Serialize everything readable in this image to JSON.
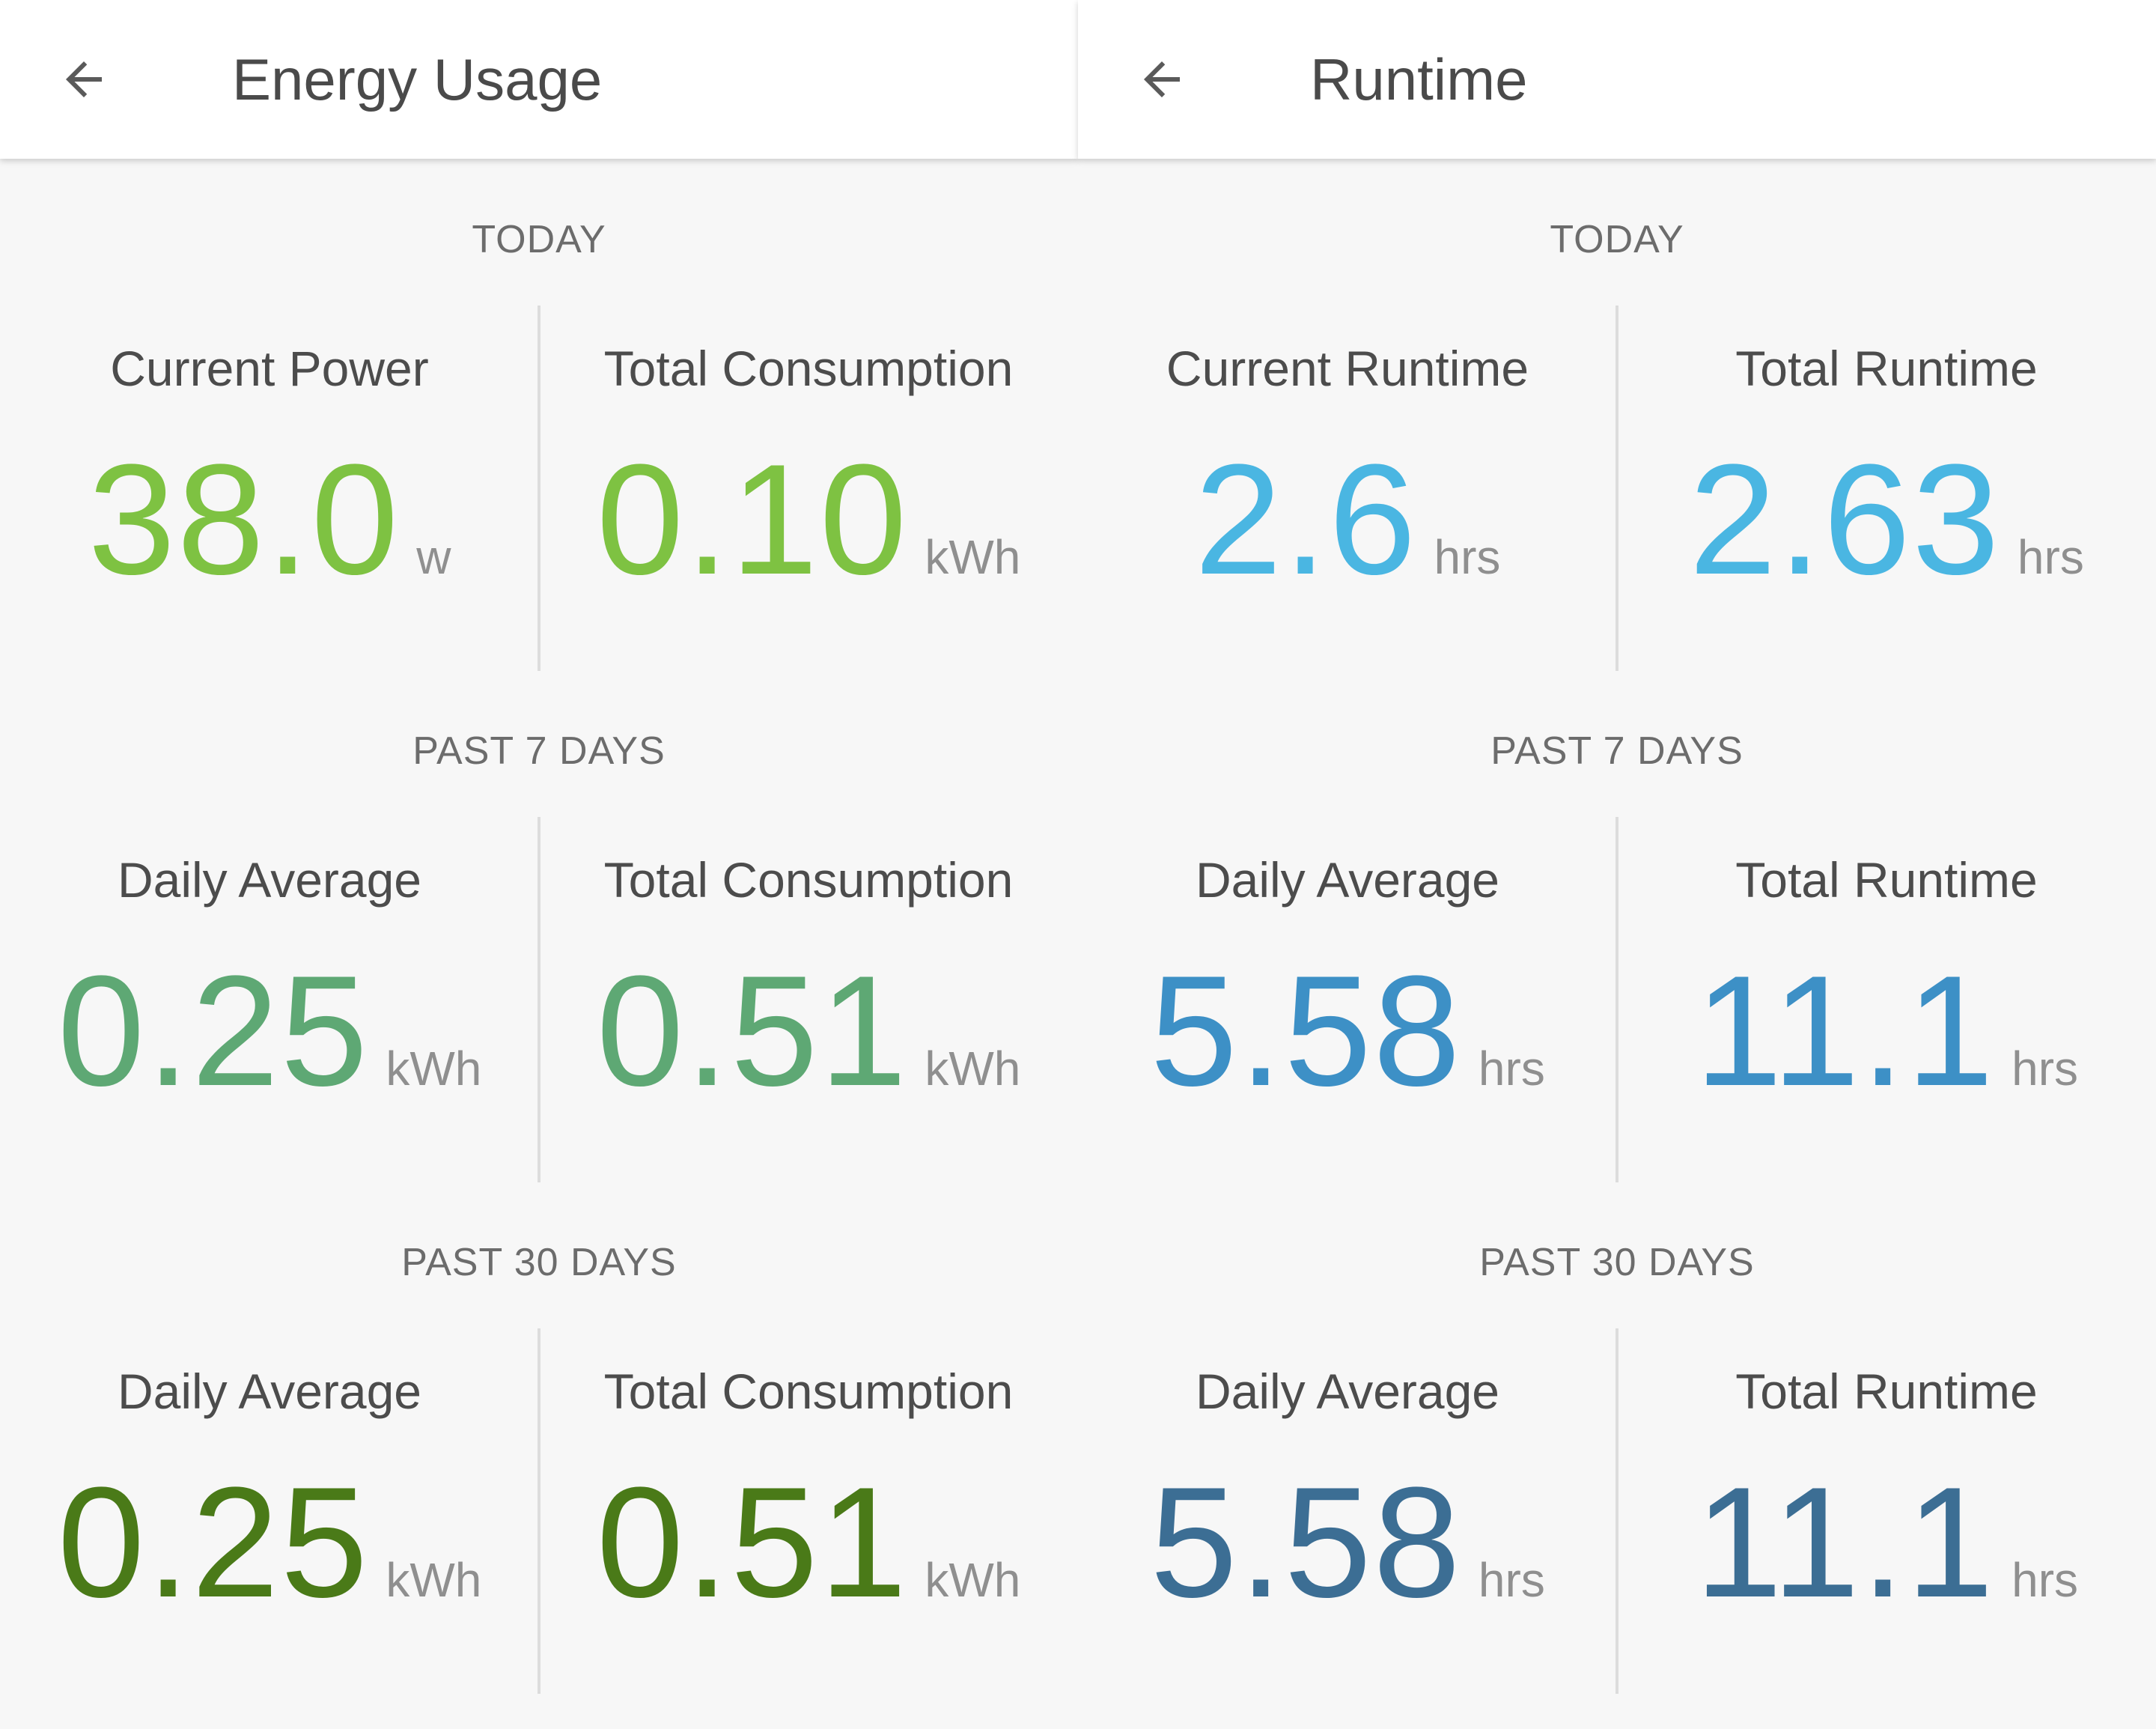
{
  "colors": {
    "today_energy": "#7ec242",
    "week_energy": "#5ea874",
    "month_energy": "#4a7a18",
    "today_runtime": "#4ab6e2",
    "week_runtime": "#3d90c6",
    "month_runtime": "#3c6e94"
  },
  "icons": {
    "back": "arrow-left-icon"
  },
  "energy": {
    "title": "Energy Usage",
    "today": {
      "heading": "TODAY",
      "left": {
        "label": "Current Power",
        "value": "38.0",
        "unit": "w"
      },
      "right": {
        "label": "Total Consumption",
        "value": "0.10",
        "unit": "kWh"
      }
    },
    "week": {
      "heading": "PAST 7 DAYS",
      "left": {
        "label": "Daily Average",
        "value": "0.25",
        "unit": "kWh"
      },
      "right": {
        "label": "Total Consumption",
        "value": "0.51",
        "unit": "kWh"
      }
    },
    "month": {
      "heading": "PAST 30 DAYS",
      "left": {
        "label": "Daily Average",
        "value": "0.25",
        "unit": "kWh"
      },
      "right": {
        "label": "Total Consumption",
        "value": "0.51",
        "unit": "kWh"
      }
    }
  },
  "runtime": {
    "title": "Runtime",
    "today": {
      "heading": "TODAY",
      "left": {
        "label": "Current Runtime",
        "value": "2.6",
        "unit": "hrs"
      },
      "right": {
        "label": "Total Runtime",
        "value": "2.63",
        "unit": "hrs"
      }
    },
    "week": {
      "heading": "PAST 7 DAYS",
      "left": {
        "label": "Daily Average",
        "value": "5.58",
        "unit": "hrs"
      },
      "right": {
        "label": "Total Runtime",
        "value": "11.1",
        "unit": "hrs"
      }
    },
    "month": {
      "heading": "PAST 30 DAYS",
      "left": {
        "label": "Daily Average",
        "value": "5.58",
        "unit": "hrs"
      },
      "right": {
        "label": "Total Runtime",
        "value": "11.1",
        "unit": "hrs"
      }
    }
  }
}
